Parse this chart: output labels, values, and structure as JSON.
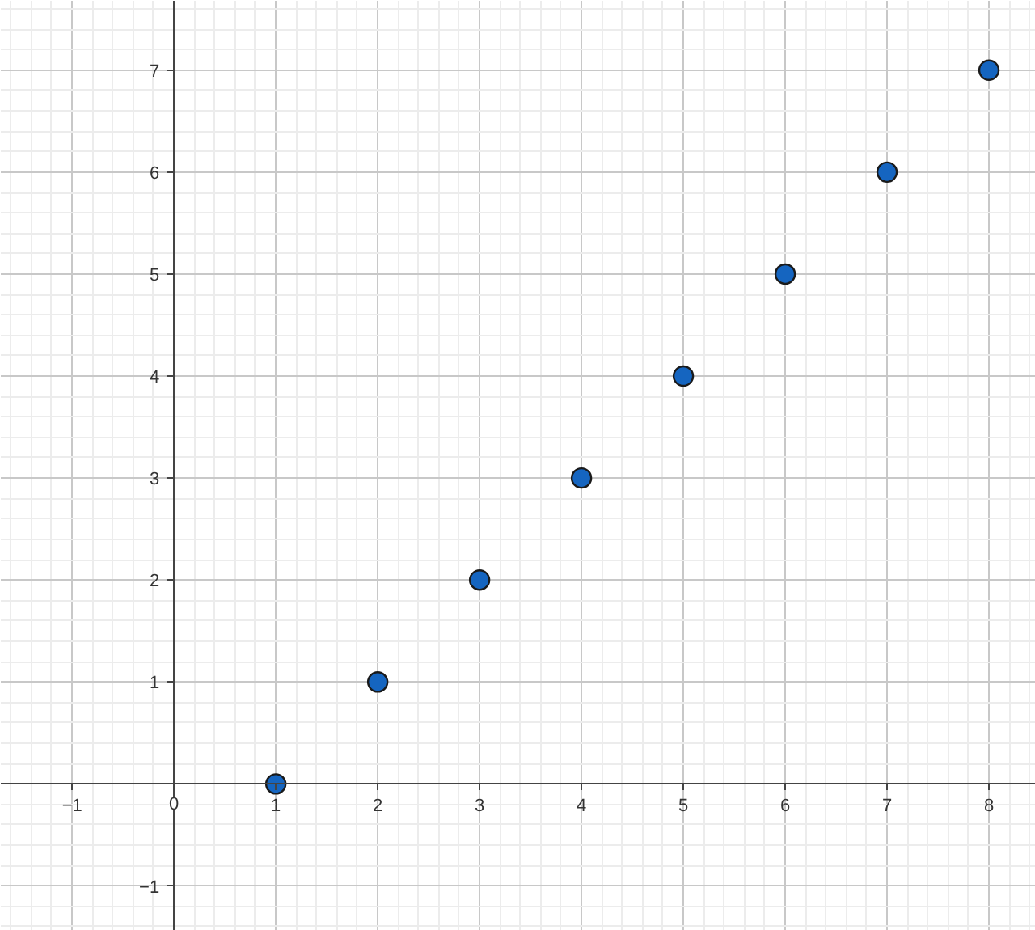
{
  "chart_data": {
    "type": "scatter",
    "x": [
      1,
      2,
      3,
      4,
      5,
      6,
      7,
      8
    ],
    "series": [
      {
        "color": "#1565c0",
        "values": [
          0,
          1,
          2,
          3,
          4,
          5,
          6,
          7
        ]
      }
    ],
    "xlim": [
      -1.7,
      8.46
    ],
    "ylim": [
      -1.44,
      7.68
    ],
    "xticks": [
      -1,
      0,
      1,
      2,
      3,
      4,
      5,
      6,
      7,
      8
    ],
    "yticks": [
      -1,
      1,
      2,
      3,
      4,
      5,
      6,
      7
    ],
    "grid": true,
    "marker": "circle"
  }
}
